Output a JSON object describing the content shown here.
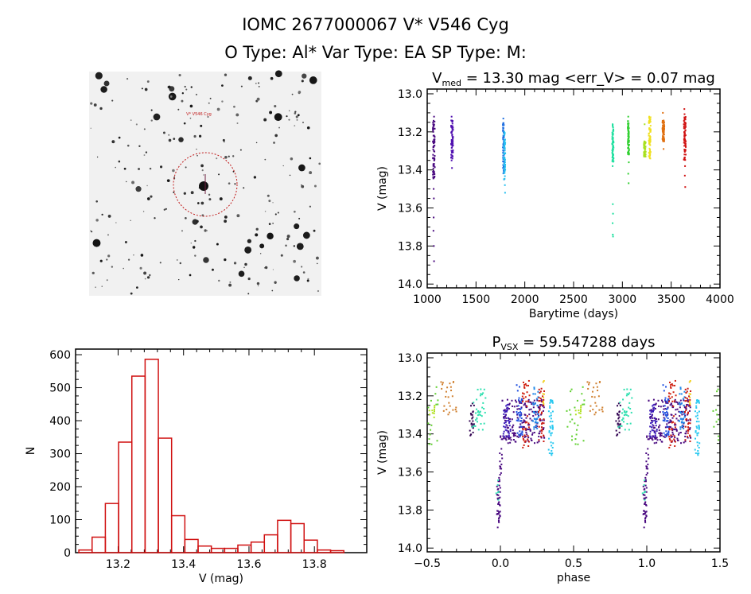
{
  "header": {
    "title": "IOMC 2677000067    V* V546 Cyg",
    "subtitle": "O Type: Al*  Var Type: EA  SP Type: M:"
  },
  "finder_chart": {
    "target_label": "V* V546 Cyg"
  },
  "colors": {
    "histogram": "#d01010",
    "axes": "#000000",
    "sky": "#f2f2f2"
  },
  "chart_data": [
    {
      "type": "scatter",
      "title_main": "V",
      "title_sub": "med",
      "title_rest": " = 13.30 mag <err_V> = 0.07 mag",
      "xlabel": "Barytime (days)",
      "ylabel": "V (mag)",
      "xlim": [
        1000,
        4000
      ],
      "ylim": [
        12.975,
        14.02
      ],
      "y_inverted": true,
      "xticks": [
        1000,
        1500,
        2000,
        2500,
        3000,
        3500,
        4000
      ],
      "xtick_labels": [
        "1000",
        "1500",
        "2000",
        "2500",
        "3000",
        "3500",
        "4000"
      ],
      "yticks": [
        13.0,
        13.2,
        13.4,
        13.6,
        13.8,
        14.0
      ],
      "ytick_labels": [
        "13.0",
        "13.2",
        "13.4",
        "13.6",
        "13.8",
        "14.0"
      ],
      "series": [
        {
          "color": "#4a0a80",
          "time": [
            1058,
            1078
          ],
          "points": [
            [
              1060,
              13.15
            ],
            [
              1064,
              13.22
            ],
            [
              1068,
              13.3
            ],
            [
              1070,
              13.38
            ],
            [
              1072,
              13.44
            ],
            [
              1066,
              13.26
            ],
            [
              1062,
              13.2
            ],
            [
              1074,
              13.34
            ],
            [
              1070,
              13.12
            ],
            [
              1068,
              13.55
            ],
            [
              1066,
              13.65
            ],
            [
              1064,
              13.72
            ],
            [
              1068,
              13.8
            ],
            [
              1070,
              13.88
            ],
            [
              1066,
              13.5
            ],
            [
              1072,
              13.42
            ],
            [
              1062,
              13.28
            ],
            [
              1076,
              13.24
            ]
          ],
          "dense_range": [
            13.14,
            13.45
          ]
        },
        {
          "color": "#5010b0",
          "time": [
            1245,
            1265
          ],
          "points": [
            [
              1250,
              13.12
            ],
            [
              1252,
              13.2
            ],
            [
              1255,
              13.25
            ],
            [
              1258,
              13.3
            ],
            [
              1250,
              13.35
            ],
            [
              1254,
              13.39
            ],
            [
              1260,
              13.23
            ],
            [
              1262,
              13.26
            ]
          ],
          "dense_range": [
            13.14,
            13.34
          ]
        },
        {
          "color": "#1e6ee0",
          "time": [
            1775,
            1790
          ],
          "points": [
            [
              1780,
              13.13
            ],
            [
              1782,
              13.2
            ],
            [
              1784,
              13.3
            ],
            [
              1786,
              13.4
            ],
            [
              1788,
              13.45
            ]
          ],
          "dense_range": [
            13.14,
            13.42
          ]
        },
        {
          "color": "#28c0f0",
          "time": [
            1785,
            1800
          ],
          "points": [
            [
              1790,
              13.2
            ],
            [
              1794,
              13.35
            ],
            [
              1796,
              13.48
            ],
            [
              1798,
              13.52
            ],
            [
              1792,
              13.28
            ]
          ],
          "dense_range": [
            13.2,
            13.45
          ]
        },
        {
          "color": "#20e0a0",
          "time": [
            2895,
            2910
          ],
          "points": [
            [
              2900,
              13.16
            ],
            [
              2902,
              13.25
            ],
            [
              2904,
              13.35
            ],
            [
              2900,
              13.38
            ],
            [
              2902,
              13.58
            ],
            [
              2904,
              13.63
            ],
            [
              2900,
              13.68
            ],
            [
              2902,
              13.74
            ],
            [
              2904,
              13.75
            ]
          ],
          "dense_range": [
            13.16,
            13.36
          ]
        },
        {
          "color": "#30d030",
          "time": [
            3055,
            3070
          ],
          "points": [
            [
              3060,
              13.12
            ],
            [
              3062,
              13.2
            ],
            [
              3064,
              13.3
            ],
            [
              3066,
              13.36
            ],
            [
              3060,
              13.42
            ],
            [
              3064,
              13.47
            ]
          ],
          "dense_range": [
            13.14,
            13.32
          ]
        },
        {
          "color": "#a8e020",
          "time": [
            3220,
            3240
          ],
          "points": [
            [
              3225,
              13.25
            ],
            [
              3230,
              13.28
            ],
            [
              3235,
              13.32
            ],
            [
              3238,
              13.33
            ],
            [
              3228,
              13.16
            ]
          ],
          "dense_range": [
            13.25,
            13.33
          ]
        },
        {
          "color": "#f0e020",
          "time": [
            3270,
            3290
          ],
          "points": [
            [
              3275,
              13.12
            ],
            [
              3280,
              13.15
            ],
            [
              3285,
              13.2
            ],
            [
              3278,
              13.26
            ],
            [
              3282,
              13.3
            ],
            [
              3286,
              13.34
            ]
          ],
          "dense_range": [
            13.12,
            13.34
          ]
        },
        {
          "color": "#e07010",
          "time": [
            3410,
            3430
          ],
          "points": [
            [
              3415,
              13.1
            ],
            [
              3420,
              13.15
            ],
            [
              3425,
              13.2
            ],
            [
              3418,
              13.25
            ],
            [
              3422,
              13.29
            ]
          ],
          "dense_range": [
            13.14,
            13.25
          ]
        },
        {
          "color": "#d01010",
          "time": [
            3630,
            3650
          ],
          "points": [
            [
              3635,
              13.08
            ],
            [
              3640,
              13.15
            ],
            [
              3645,
              13.25
            ],
            [
              3638,
              13.34
            ],
            [
              3642,
              13.38
            ],
            [
              3640,
              13.43
            ],
            [
              3644,
              13.49
            ]
          ],
          "dense_range": [
            13.1,
            13.35
          ]
        }
      ]
    },
    {
      "type": "histogram",
      "xlabel": "V (mag)",
      "ylabel": "N",
      "xlim": [
        13.07,
        13.96
      ],
      "ylim": [
        0,
        617
      ],
      "xticks": [
        13.2,
        13.4,
        13.6,
        13.8
      ],
      "xtick_labels": [
        "13.2",
        "13.4",
        "13.6",
        "13.8"
      ],
      "yticks": [
        0,
        100,
        200,
        300,
        400,
        500,
        600
      ],
      "ytick_labels": [
        "0",
        "100",
        "200",
        "300",
        "400",
        "500",
        "600"
      ],
      "bin_start": 13.08,
      "bin_width": 0.0405,
      "values": [
        8,
        47,
        149,
        335,
        535,
        586,
        347,
        112,
        40,
        20,
        13,
        13,
        23,
        32,
        54,
        98,
        88,
        38,
        8,
        6
      ]
    },
    {
      "type": "scatter",
      "title_main": "P",
      "title_sub": "VSX",
      "title_rest": " = 59.547288 days",
      "xlabel": "phase",
      "ylabel": "V (mag)",
      "xlim": [
        -0.5,
        1.5
      ],
      "ylim": [
        12.975,
        14.02
      ],
      "y_inverted": true,
      "xticks": [
        -0.5,
        0.0,
        0.5,
        1.0,
        1.5
      ],
      "xtick_labels": [
        "−0.5",
        "0.0",
        "0.5",
        "1.0",
        "1.5"
      ],
      "yticks": [
        13.0,
        13.2,
        13.4,
        13.6,
        13.8,
        14.0
      ],
      "ytick_labels": [
        "13.0",
        "13.2",
        "13.4",
        "13.6",
        "13.8",
        "14.0"
      ],
      "phase_groups": [
        {
          "color": "#4a0a80",
          "phase": [
            -0.025,
            0.0
          ],
          "mag": [
            13.62,
            13.9
          ],
          "n": 40
        },
        {
          "color": "#4a0a80",
          "phase": [
            -0.005,
            0.012
          ],
          "mag": [
            13.4,
            13.62
          ],
          "n": 15
        },
        {
          "color": "#4a0a80",
          "phase": [
            0.01,
            0.3
          ],
          "mag": [
            13.22,
            13.45
          ],
          "n": 180
        },
        {
          "color": "#3a1ab8",
          "phase": [
            0.02,
            0.07
          ],
          "mag": [
            13.22,
            13.42
          ],
          "n": 40
        },
        {
          "color": "#2050e0",
          "phase": [
            0.11,
            0.15
          ],
          "mag": [
            13.14,
            13.42
          ],
          "n": 40
        },
        {
          "color": "#d02010",
          "phase": [
            0.15,
            0.2
          ],
          "mag": [
            13.1,
            13.48
          ],
          "n": 40
        },
        {
          "color": "#2088e8",
          "phase": [
            0.22,
            0.26
          ],
          "mag": [
            13.15,
            13.38
          ],
          "n": 35
        },
        {
          "color": "#c81810",
          "phase": [
            0.26,
            0.3
          ],
          "mag": [
            13.15,
            13.44
          ],
          "n": 35
        },
        {
          "color": "#f0d020",
          "phase": [
            0.29,
            0.3
          ],
          "mag": [
            13.12,
            13.28
          ],
          "n": 8
        },
        {
          "color": "#28c8f0",
          "phase": [
            0.33,
            0.36
          ],
          "mag": [
            13.22,
            13.52
          ],
          "n": 40
        },
        {
          "color": "#60d030",
          "phase": [
            0.45,
            0.58
          ],
          "mag": [
            13.15,
            13.46
          ],
          "n": 25
        },
        {
          "color": "#b0e020",
          "phase": [
            0.5,
            0.56
          ],
          "mag": [
            13.25,
            13.32
          ],
          "n": 10
        },
        {
          "color": "#d08030",
          "phase": [
            0.58,
            0.7
          ],
          "mag": [
            13.12,
            13.3
          ],
          "n": 25
        },
        {
          "color": "#300050",
          "phase": [
            0.79,
            0.82
          ],
          "mag": [
            13.24,
            13.43
          ],
          "n": 25
        },
        {
          "color": "#30e0b0",
          "phase": [
            0.8,
            0.9
          ],
          "mag": [
            13.16,
            13.38
          ],
          "n": 35
        },
        {
          "color": "#30e0b0",
          "phase": [
            0.97,
            0.99
          ],
          "mag": [
            13.58,
            13.75
          ],
          "n": 6
        }
      ]
    }
  ]
}
